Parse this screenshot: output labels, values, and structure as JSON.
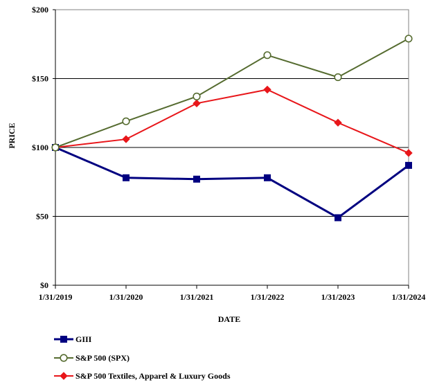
{
  "chart_data": {
    "type": "line",
    "title": "",
    "xlabel": "DATE",
    "ylabel": "PRICE",
    "categories": [
      "1/31/2019",
      "1/31/2020",
      "1/31/2021",
      "1/31/2022",
      "1/31/2023",
      "1/31/2024"
    ],
    "ylim": [
      0,
      200
    ],
    "yticks": [
      0,
      50,
      100,
      150,
      200
    ],
    "ytick_labels": [
      "$0",
      "$50",
      "$100",
      "$150",
      "$200"
    ],
    "grid": true,
    "legend_position": "bottom",
    "series": [
      {
        "name": "GIII",
        "color": "#000080",
        "marker": "square",
        "values": [
          100,
          78,
          77,
          78,
          49,
          87
        ]
      },
      {
        "name": "S&P 500 (SPX)",
        "color": "#556B2F",
        "marker": "open-circle",
        "values": [
          100,
          119,
          137,
          167,
          151,
          179
        ]
      },
      {
        "name": "S&P 500 Textiles, Apparel & Luxury Goods",
        "color": "#E8161A",
        "marker": "diamond",
        "values": [
          100,
          106,
          132,
          142,
          118,
          96
        ]
      }
    ]
  }
}
